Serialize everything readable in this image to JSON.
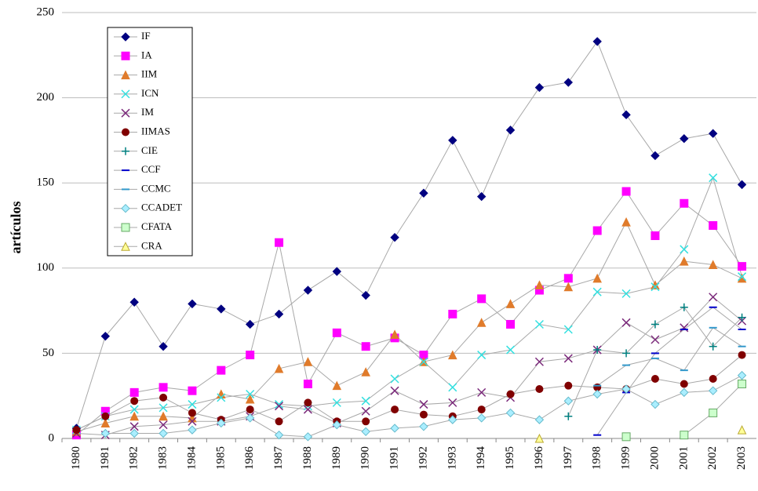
{
  "chart_data": {
    "type": "line",
    "y_label": "artículos",
    "categories": [
      "1980",
      "1981",
      "1982",
      "1983",
      "1984",
      "1985",
      "1986",
      "1987",
      "1988",
      "1989",
      "1990",
      "1991",
      "1992",
      "1993",
      "1994",
      "1995",
      "1996",
      "1997",
      "1998",
      "1999",
      "2000",
      "2001",
      "2002",
      "2003"
    ],
    "ylim": [
      0,
      250
    ],
    "yticks": [
      0,
      50,
      100,
      150,
      200,
      250
    ],
    "grid": true,
    "line_color": "#a8a8a8",
    "series": [
      {
        "name": "IF",
        "color": "#000080",
        "marker": "diamond",
        "values": [
          6,
          60,
          80,
          54,
          79,
          76,
          67,
          73,
          87,
          98,
          84,
          118,
          144,
          175,
          142,
          181,
          206,
          209,
          233,
          190,
          166,
          176,
          179,
          149
        ]
      },
      {
        "name": "IA",
        "color": "#ff00ff",
        "marker": "square",
        "values": [
          2,
          16,
          27,
          30,
          28,
          40,
          49,
          115,
          32,
          62,
          54,
          59,
          49,
          73,
          82,
          67,
          87,
          94,
          122,
          145,
          119,
          138,
          125,
          101
        ]
      },
      {
        "name": "IIM",
        "color": "#e07b2b",
        "marker": "triangle",
        "values": [
          4,
          9,
          13,
          13,
          12,
          26,
          23,
          41,
          45,
          31,
          39,
          61,
          45,
          49,
          68,
          79,
          90,
          89,
          94,
          127,
          90,
          104,
          102,
          94
        ]
      },
      {
        "name": "ICN",
        "color": "#33e0e0",
        "marker": "x",
        "values": [
          5,
          13,
          17,
          18,
          20,
          24,
          26,
          20,
          19,
          21,
          22,
          35,
          45,
          30,
          49,
          52,
          67,
          64,
          86,
          85,
          89,
          111,
          153,
          95
        ]
      },
      {
        "name": "IM",
        "color": "#7b2a7b",
        "marker": "x",
        "values": [
          3,
          2,
          7,
          8,
          10,
          10,
          13,
          19,
          17,
          9,
          16,
          28,
          20,
          21,
          27,
          24,
          45,
          47,
          52,
          68,
          58,
          65,
          83,
          69
        ]
      },
      {
        "name": "IIMAS",
        "color": "#800000",
        "marker": "circle",
        "values": [
          5,
          13,
          22,
          24,
          15,
          11,
          17,
          10,
          21,
          10,
          10,
          17,
          14,
          13,
          17,
          26,
          29,
          31,
          30,
          29,
          35,
          32,
          35,
          49
        ]
      },
      {
        "name": "CIE",
        "color": "#008080",
        "marker": "plus",
        "values": [
          null,
          null,
          null,
          null,
          null,
          null,
          null,
          null,
          null,
          null,
          null,
          null,
          null,
          null,
          null,
          null,
          null,
          13,
          52,
          50,
          67,
          77,
          54,
          71
        ]
      },
      {
        "name": "CCF",
        "color": "#0000cc",
        "marker": "dash",
        "values": [
          null,
          null,
          null,
          null,
          null,
          null,
          null,
          null,
          null,
          null,
          null,
          null,
          null,
          null,
          null,
          null,
          null,
          null,
          2,
          27,
          50,
          64,
          77,
          64
        ]
      },
      {
        "name": "CCMC",
        "color": "#3399cc",
        "marker": "dash",
        "values": [
          null,
          null,
          null,
          null,
          null,
          null,
          null,
          null,
          null,
          null,
          null,
          null,
          null,
          null,
          null,
          null,
          null,
          null,
          31,
          43,
          47,
          40,
          65,
          54
        ]
      },
      {
        "name": "CCADET",
        "color": "#aaeeff",
        "marker": "diamond",
        "values": [
          null,
          3,
          3,
          3,
          5,
          9,
          12,
          2,
          1,
          8,
          4,
          6,
          7,
          11,
          12,
          15,
          11,
          22,
          26,
          29,
          20,
          27,
          28,
          37
        ]
      },
      {
        "name": "CFATA",
        "color": "#ccffcc",
        "marker": "square",
        "values": [
          null,
          null,
          null,
          null,
          null,
          null,
          null,
          null,
          null,
          null,
          null,
          null,
          null,
          null,
          null,
          null,
          null,
          null,
          null,
          1,
          null,
          2,
          15,
          32
        ]
      },
      {
        "name": "CRA",
        "color": "#ffff99",
        "marker": "triangle",
        "values": [
          null,
          null,
          null,
          null,
          null,
          null,
          null,
          null,
          null,
          null,
          null,
          null,
          null,
          null,
          null,
          null,
          0,
          null,
          null,
          null,
          null,
          null,
          null,
          5
        ]
      }
    ]
  }
}
